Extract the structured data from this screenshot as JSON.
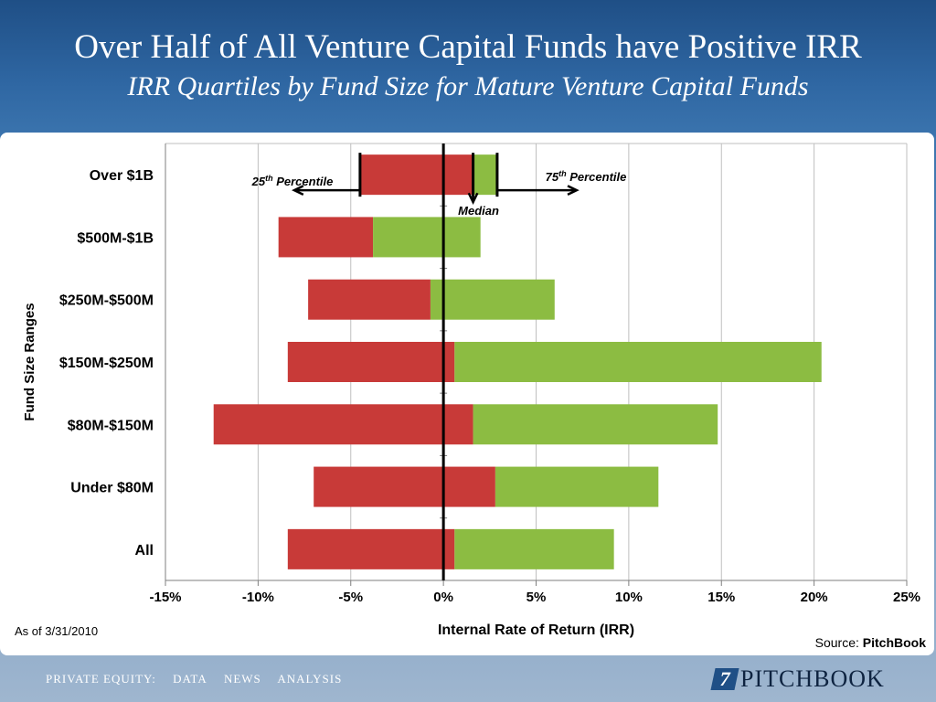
{
  "header": {
    "title": "Over Half of All Venture Capital Funds have Positive IRR",
    "subtitle": "IRR Quartiles by Fund Size for Mature Venture Capital Funds"
  },
  "chart_data": {
    "type": "bar",
    "orientation": "horizontal",
    "stacked": true,
    "xlabel": "Internal Rate of Return (IRR)",
    "ylabel": "Fund Size Ranges",
    "xlim": [
      -15,
      25
    ],
    "x_ticks": [
      "-15%",
      "-10%",
      "-5%",
      "0%",
      "5%",
      "10%",
      "15%",
      "20%",
      "25%"
    ],
    "grid": true,
    "categories": [
      "Over $1B",
      "$500M-$1B",
      "$250M-$500M",
      "$150M-$250M",
      "$80M-$150M",
      "Under $80M",
      "All"
    ],
    "series": [
      {
        "name": "",
        "role": "25th percentile to median",
        "color": "#c83a38",
        "start": [
          -4.5,
          -8.9,
          -7.3,
          -8.4,
          -12.4,
          -7.0,
          -8.4
        ],
        "end": [
          1.6,
          -3.8,
          -0.7,
          0.6,
          1.6,
          2.8,
          0.6
        ]
      },
      {
        "name": "",
        "role": "median to 75th percentile",
        "color": "#8cbc42",
        "start": [
          1.6,
          -3.8,
          -0.7,
          0.6,
          1.6,
          2.8,
          0.6
        ],
        "end": [
          2.9,
          2.0,
          6.0,
          20.4,
          14.8,
          11.6,
          9.2
        ]
      }
    ],
    "zero_line": {
      "value": 0,
      "color": "#000000"
    },
    "annotations": {
      "p25_prefix": "25",
      "p25_sup": "th",
      "p25_suffix": " Percentile",
      "p75_prefix": "75",
      "p75_sup": "th",
      "p75_suffix": " Percentile",
      "median": "Median",
      "p25_value": -4.5,
      "median_value": 1.6,
      "p75_value": 2.9
    },
    "as_of": "As of 3/31/2010",
    "source_label": "Source: ",
    "source_name": "PitchBook"
  },
  "footer": {
    "nav_items": [
      "PRIVATE EQUITY:",
      "DATA",
      "NEWS",
      "ANALYSIS"
    ],
    "logo_mark": "7",
    "logo_text": "PITCHBOOK"
  }
}
